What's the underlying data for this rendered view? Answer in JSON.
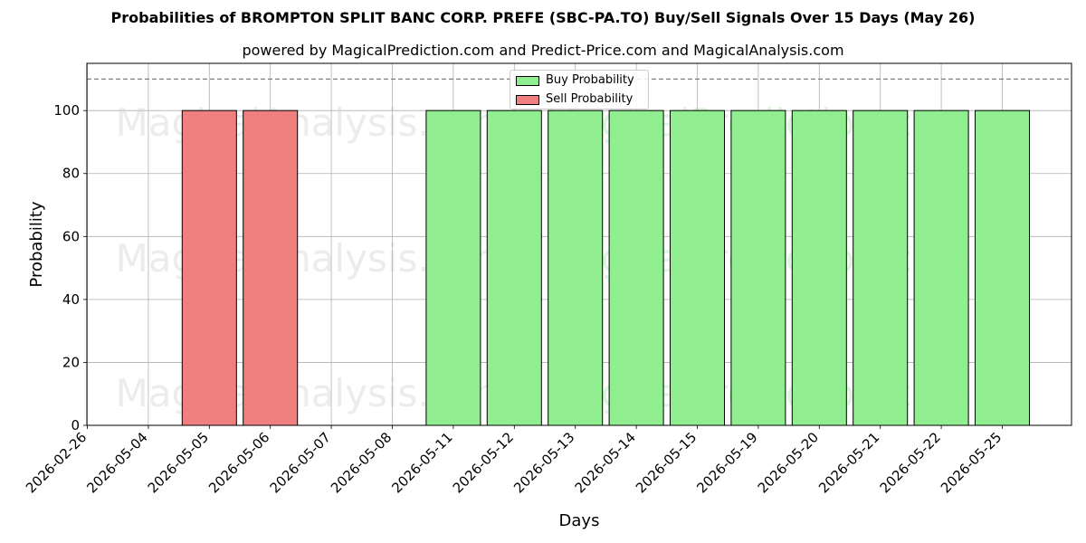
{
  "title": "Probabilities of BROMPTON SPLIT BANC CORP. PREFE (SBC-PA.TO) Buy/Sell Signals Over 15 Days (May 26)",
  "subtitle": "powered by MagicalPrediction.com and Predict-Price.com and MagicalAnalysis.com",
  "watermarks": [
    "MagicalAnalysis.com",
    "MagicalPrediction.com"
  ],
  "colors": {
    "buy": "#90ee90",
    "sell": "#f08080",
    "grid": "#b0b0b0",
    "reference_line": "#808080"
  },
  "chart_data": {
    "type": "bar",
    "title": "Probabilities of BROMPTON SPLIT BANC CORP. PREFE (SBC-PA.TO) Buy/Sell Signals Over 15 Days (May 26)",
    "xlabel": "Days",
    "ylabel": "Probability",
    "ylim": [
      0,
      115
    ],
    "yticks": [
      0,
      20,
      40,
      60,
      80,
      100
    ],
    "reference_line": 110,
    "grid": true,
    "legend_placement": "top-center",
    "categories": [
      "2026-02-26",
      "2026-05-04",
      "2026-05-05",
      "2026-05-06",
      "2026-05-07",
      "2026-05-08",
      "2026-05-11",
      "2026-05-12",
      "2026-05-13",
      "2026-05-14",
      "2026-05-15",
      "2026-05-19",
      "2026-05-20",
      "2026-05-21",
      "2026-05-22",
      "2026-05-25"
    ],
    "series": [
      {
        "name": "Buy Probability",
        "values": [
          0,
          0,
          0,
          0,
          0,
          0,
          100,
          100,
          100,
          100,
          100,
          100,
          100,
          100,
          100,
          100
        ]
      },
      {
        "name": "Sell Probability",
        "values": [
          0,
          0,
          100,
          100,
          0,
          0,
          0,
          0,
          0,
          0,
          0,
          0,
          0,
          0,
          0,
          0
        ]
      }
    ]
  }
}
